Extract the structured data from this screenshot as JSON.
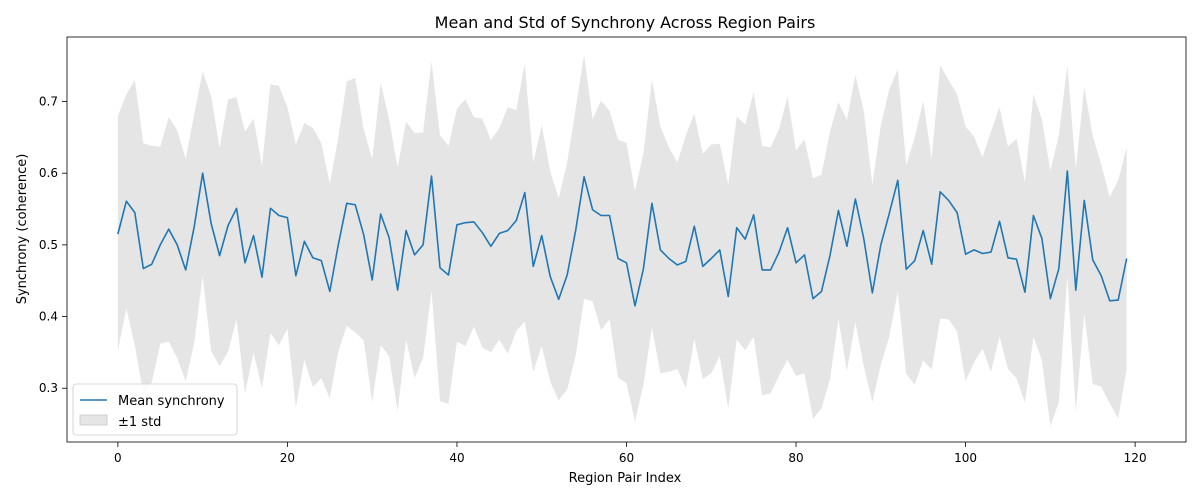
{
  "chart_data": {
    "type": "line",
    "title": "Mean and Std of Synchrony Across Region Pairs",
    "xlabel": "Region Pair Index",
    "ylabel": "Synchrony (coherence)",
    "xlim": [
      -6,
      126
    ],
    "ylim": [
      0.225,
      0.79
    ],
    "xticks": [
      0,
      20,
      40,
      60,
      80,
      100,
      120
    ],
    "yticks": [
      0.3,
      0.4,
      0.5,
      0.6,
      0.7
    ],
    "grid": false,
    "legend_position": "lower-left",
    "colors": {
      "mean_line": "#1f77b4",
      "band_fill": "#d3d3d3",
      "axis": "#000000"
    },
    "legend": [
      {
        "label": "Mean synchrony",
        "kind": "line"
      },
      {
        "label": "±1 std",
        "kind": "band"
      }
    ],
    "x": [
      0,
      1,
      2,
      3,
      4,
      5,
      6,
      7,
      8,
      9,
      10,
      11,
      12,
      13,
      14,
      15,
      16,
      17,
      18,
      19,
      20,
      21,
      22,
      23,
      24,
      25,
      26,
      27,
      28,
      29,
      30,
      31,
      32,
      33,
      34,
      35,
      36,
      37,
      38,
      39,
      40,
      41,
      42,
      43,
      44,
      45,
      46,
      47,
      48,
      49,
      50,
      51,
      52,
      53,
      54,
      55,
      56,
      57,
      58,
      59,
      60,
      61,
      62,
      63,
      64,
      65,
      66,
      67,
      68,
      69,
      70,
      71,
      72,
      73,
      74,
      75,
      76,
      77,
      78,
      79,
      80,
      81,
      82,
      83,
      84,
      85,
      86,
      87,
      88,
      89,
      90,
      91,
      92,
      93,
      94,
      95,
      96,
      97,
      98,
      99,
      100,
      101,
      102,
      103,
      104,
      105,
      106,
      107,
      108,
      109,
      110,
      111,
      112,
      113,
      114,
      115,
      116,
      117,
      118,
      119
    ],
    "series": [
      {
        "name": "Mean synchrony",
        "values": [
          0.515,
          0.561,
          0.545,
          0.467,
          0.473,
          0.5,
          0.522,
          0.5,
          0.465,
          0.525,
          0.6,
          0.53,
          0.485,
          0.527,
          0.551,
          0.475,
          0.513,
          0.455,
          0.551,
          0.541,
          0.538,
          0.457,
          0.505,
          0.482,
          0.478,
          0.435,
          0.5,
          0.558,
          0.556,
          0.514,
          0.451,
          0.543,
          0.51,
          0.437,
          0.52,
          0.486,
          0.5,
          0.596,
          0.468,
          0.458,
          0.528,
          0.531,
          0.532,
          0.517,
          0.498,
          0.516,
          0.52,
          0.534,
          0.573,
          0.47,
          0.513,
          0.456,
          0.424,
          0.458,
          0.52,
          0.595,
          0.549,
          0.541,
          0.541,
          0.481,
          0.475,
          0.415,
          0.467,
          0.558,
          0.493,
          0.481,
          0.472,
          0.477,
          0.526,
          0.47,
          0.481,
          0.493,
          0.428,
          0.524,
          0.508,
          0.542,
          0.465,
          0.465,
          0.49,
          0.524,
          0.475,
          0.486,
          0.425,
          0.435,
          0.485,
          0.548,
          0.498,
          0.564,
          0.508,
          0.433,
          0.5,
          0.544,
          0.59,
          0.466,
          0.478,
          0.52,
          0.473,
          0.574,
          0.562,
          0.545,
          0.487,
          0.493,
          0.488,
          0.49,
          0.533,
          0.482,
          0.48,
          0.434,
          0.541,
          0.509,
          0.425,
          0.467,
          0.603,
          0.437,
          0.562,
          0.479,
          0.457,
          0.422,
          0.423,
          0.481
        ]
      }
    ],
    "band": {
      "name": "±1 std",
      "upper": [
        0.68,
        0.71,
        0.73,
        0.642,
        0.638,
        0.637,
        0.678,
        0.66,
        0.62,
        0.682,
        0.742,
        0.708,
        0.635,
        0.703,
        0.706,
        0.658,
        0.676,
        0.61,
        0.724,
        0.722,
        0.692,
        0.64,
        0.67,
        0.663,
        0.642,
        0.585,
        0.65,
        0.728,
        0.733,
        0.661,
        0.62,
        0.726,
        0.675,
        0.608,
        0.672,
        0.656,
        0.657,
        0.756,
        0.653,
        0.638,
        0.69,
        0.703,
        0.678,
        0.676,
        0.646,
        0.663,
        0.692,
        0.688,
        0.753,
        0.615,
        0.667,
        0.603,
        0.565,
        0.615,
        0.69,
        0.765,
        0.675,
        0.701,
        0.687,
        0.647,
        0.642,
        0.575,
        0.628,
        0.73,
        0.665,
        0.636,
        0.615,
        0.653,
        0.683,
        0.627,
        0.64,
        0.641,
        0.584,
        0.679,
        0.668,
        0.713,
        0.638,
        0.636,
        0.662,
        0.707,
        0.632,
        0.647,
        0.593,
        0.598,
        0.658,
        0.699,
        0.674,
        0.737,
        0.686,
        0.584,
        0.667,
        0.717,
        0.745,
        0.611,
        0.65,
        0.701,
        0.62,
        0.751,
        0.73,
        0.71,
        0.665,
        0.651,
        0.622,
        0.658,
        0.692,
        0.637,
        0.648,
        0.588,
        0.71,
        0.675,
        0.603,
        0.653,
        0.75,
        0.606,
        0.72,
        0.652,
        0.612,
        0.567,
        0.59,
        0.636
      ],
      "lower": [
        0.352,
        0.411,
        0.36,
        0.292,
        0.308,
        0.362,
        0.365,
        0.342,
        0.31,
        0.363,
        0.457,
        0.352,
        0.331,
        0.351,
        0.396,
        0.293,
        0.35,
        0.3,
        0.377,
        0.36,
        0.383,
        0.273,
        0.34,
        0.302,
        0.314,
        0.286,
        0.351,
        0.387,
        0.378,
        0.367,
        0.281,
        0.36,
        0.345,
        0.268,
        0.368,
        0.314,
        0.342,
        0.436,
        0.282,
        0.278,
        0.365,
        0.359,
        0.386,
        0.357,
        0.35,
        0.368,
        0.348,
        0.38,
        0.393,
        0.323,
        0.359,
        0.309,
        0.283,
        0.298,
        0.345,
        0.425,
        0.421,
        0.381,
        0.396,
        0.315,
        0.307,
        0.254,
        0.305,
        0.385,
        0.321,
        0.323,
        0.327,
        0.3,
        0.369,
        0.313,
        0.321,
        0.345,
        0.271,
        0.368,
        0.353,
        0.372,
        0.29,
        0.293,
        0.318,
        0.34,
        0.317,
        0.321,
        0.257,
        0.272,
        0.312,
        0.396,
        0.324,
        0.392,
        0.33,
        0.281,
        0.333,
        0.372,
        0.435,
        0.32,
        0.305,
        0.339,
        0.326,
        0.397,
        0.396,
        0.379,
        0.31,
        0.336,
        0.355,
        0.323,
        0.372,
        0.327,
        0.314,
        0.28,
        0.372,
        0.339,
        0.247,
        0.281,
        0.456,
        0.268,
        0.404,
        0.306,
        0.302,
        0.279,
        0.258,
        0.326
      ]
    }
  }
}
